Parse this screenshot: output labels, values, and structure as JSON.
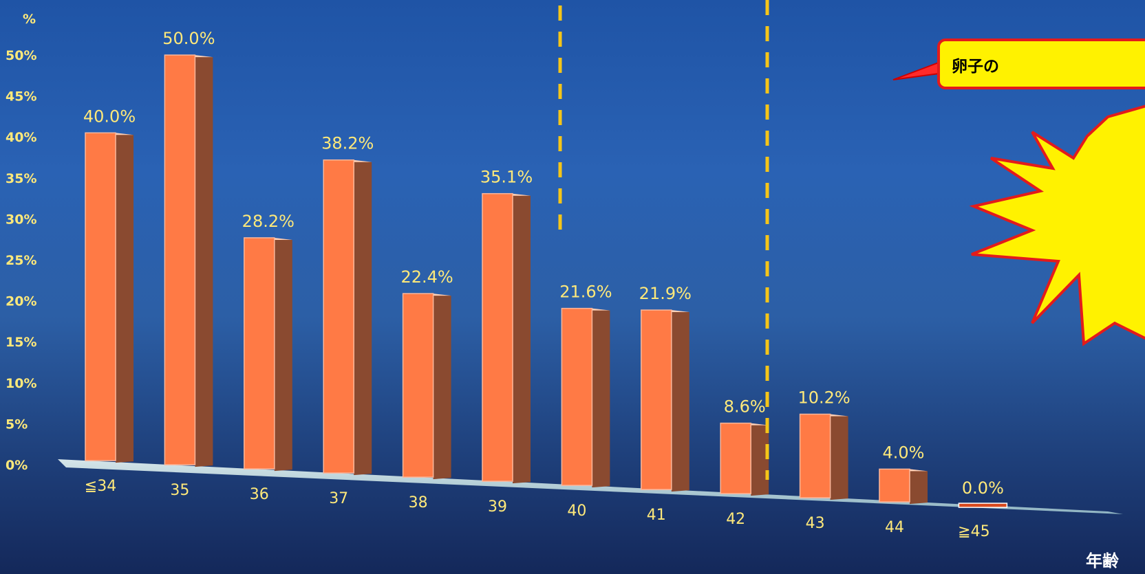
{
  "chart_data": {
    "type": "bar",
    "categories": [
      "≦34",
      "35",
      "36",
      "37",
      "38",
      "39",
      "40",
      "41",
      "42",
      "43",
      "44",
      "≧45"
    ],
    "values": [
      40.0,
      50.0,
      28.2,
      38.2,
      22.4,
      35.1,
      21.6,
      21.9,
      8.6,
      10.2,
      4.0,
      0.0
    ],
    "value_labels": [
      "40.0%",
      "50.0%",
      "28.2%",
      "38.2%",
      "22.4%",
      "35.1%",
      "21.6%",
      "21.9%",
      "8.6%",
      "10.2%",
      "4.0%",
      "0.0%"
    ],
    "y_unit": "%",
    "y_ticks": [
      "0%",
      "5%",
      "10%",
      "15%",
      "20%",
      "25%",
      "30%",
      "35%",
      "40%",
      "45%",
      "50%"
    ],
    "ylim": [
      0,
      50
    ],
    "xlabel": "年齢",
    "grid": false,
    "colors": {
      "bar_front": "#ff7a45",
      "bar_side": "#8a4a30",
      "floor": "#c9dde3",
      "divider": "#f5c518",
      "label": "#ffe97a"
    }
  },
  "annotations": {
    "callout_text": "卵子の",
    "divider_positions_between": [
      [
        "39",
        "40"
      ],
      [
        "42",
        "43"
      ]
    ]
  }
}
